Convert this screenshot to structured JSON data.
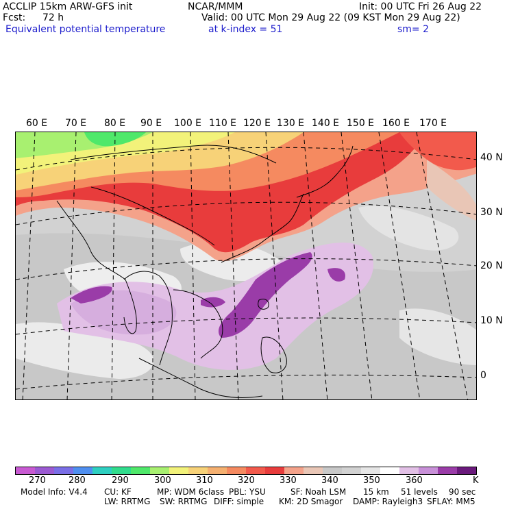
{
  "header": {
    "model_title": "ACCLIP 15km ARW-GFS init",
    "org": "NCAR/MMM",
    "init": "Init: 00 UTC Fri 26 Aug 22",
    "fcst_label": "Fcst:",
    "fcst_value": "72 h",
    "valid": "Valid: 00 UTC Mon 29 Aug 22 (09 KST Mon 29 Aug 22)",
    "variable": "Equivalent potential temperature",
    "level": "at k-index =  51",
    "smoothing": "sm= 2"
  },
  "map": {
    "lon_labels": [
      "60 E",
      "70 E",
      "80 E",
      "90 E",
      "100 E",
      "110 E",
      "120 E",
      "130 E",
      "140 E",
      "150 E",
      "160 E",
      "170 E"
    ],
    "lat_labels": [
      "40 N",
      "30 N",
      "20 N",
      "10 N",
      "0"
    ]
  },
  "colorbar": {
    "colors": [
      "#c85ad2",
      "#9b5ad2",
      "#7a6ee6",
      "#4f8ff0",
      "#2ecfc0",
      "#30dc8c",
      "#4fe86a",
      "#a8f070",
      "#f2f27a",
      "#f7d278",
      "#f5b070",
      "#f58a60",
      "#f25a4c",
      "#e83c3c",
      "#f4a28a",
      "#e9c6b6",
      "#c8c8c8",
      "#d2d2d2",
      "#e6e6e6",
      "#ffffff",
      "#e2c0e6",
      "#c890d8",
      "#9a3ca8",
      "#6a1a7c"
    ],
    "labels": [
      "270",
      "280",
      "290",
      "300",
      "310",
      "320",
      "330",
      "340",
      "350",
      "360"
    ],
    "unit": "K"
  },
  "footer": {
    "line1": [
      "Model Info: V4.4",
      "CU: KF",
      "MP: WDM 6class",
      "PBL: YSU",
      "SF: Noah LSM",
      "15 km",
      "51 levels",
      "90 sec"
    ],
    "line2": [
      "LW: RRTMG",
      "SW: RRTMG",
      "DIFF: simple",
      "KM: 2D Smagor",
      "DAMP: Rayleigh3",
      "SFLAY: MM5"
    ]
  }
}
